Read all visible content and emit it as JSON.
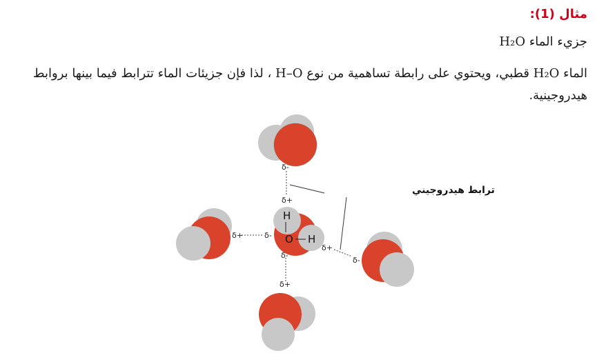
{
  "example_title": "مثال (1):",
  "subtitle": {
    "text": "جزيء الماء ",
    "formula": "H₂O"
  },
  "paragraph": {
    "part1": "الماء ",
    "formula": "H₂O",
    "part2": " قطبي، ويحتوي على رابطة تساهمية من نوع ",
    "bond": "H–O",
    "part3": " ، لذا فإن جزيئات الماء تترابط فيما بينها بروابط هيدروجينية."
  },
  "diagram": {
    "hydrogen_bond_label": "ترابط هيدروجيني",
    "center_atoms": {
      "hydrogen_top": "H",
      "oxygen": "O",
      "hydrogen_right": "H"
    },
    "charge_partial_negative": "δ-",
    "charge_partial_positive": "δ+",
    "colors": {
      "oxygen": "#d9432b",
      "hydrogen": "#c8c8c8",
      "title": "#d0001b"
    }
  }
}
